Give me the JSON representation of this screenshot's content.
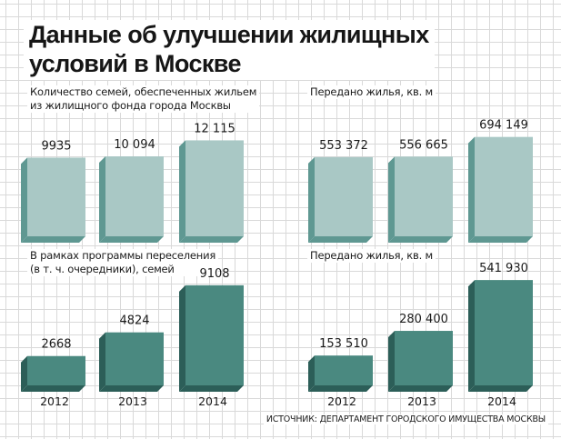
{
  "title": {
    "line1": "Данные об улучшении жилищных",
    "line2": "условий в Москве"
  },
  "colors": {
    "light_face": "#a9c8c5",
    "light_side": "#5f9892",
    "dark_face": "#4a8980",
    "dark_side": "#2c5e58"
  },
  "chart_data": [
    {
      "id": "families-housed",
      "type": "bar",
      "title_lines": [
        "Количество семей, обеспеченных жильем",
        "из жилищного фонда города Москвы"
      ],
      "categories": [
        "2012",
        "2013",
        "2014"
      ],
      "values": [
        9935,
        10094,
        12115
      ],
      "value_labels": [
        "9935",
        "10 094",
        "12 115"
      ],
      "ylim": [
        0,
        14000
      ],
      "color": "light"
    },
    {
      "id": "area-transferred-1",
      "type": "bar",
      "title_lines": [
        "Передано жилья, кв. м"
      ],
      "categories": [
        "2012",
        "2013",
        "2014"
      ],
      "values": [
        553372,
        556665,
        694149
      ],
      "value_labels": [
        "553 372",
        "556 665",
        "694 149"
      ],
      "ylim": [
        0,
        800000
      ],
      "color": "light"
    },
    {
      "id": "resettlement-families",
      "type": "bar",
      "title_lines": [
        "В рамках программы переселения",
        "(в т. ч. очередники), семей"
      ],
      "categories": [
        "2012",
        "2013",
        "2014"
      ],
      "values": [
        2668,
        4824,
        9108
      ],
      "value_labels": [
        "2668",
        "4824",
        "9108"
      ],
      "ylim": [
        0,
        11000
      ],
      "color": "dark"
    },
    {
      "id": "area-transferred-2",
      "type": "bar",
      "title_lines": [
        "Передано жилья, кв. м"
      ],
      "categories": [
        "2012",
        "2013",
        "2014"
      ],
      "values": [
        153510,
        280400,
        541930
      ],
      "value_labels": [
        "153 510",
        "280 400",
        "541 930"
      ],
      "ylim": [
        0,
        650000
      ],
      "color": "dark"
    }
  ],
  "year_labels": [
    "2012",
    "2013",
    "2014"
  ],
  "source": "ИСТОЧНИК: ДЕПАРТАМЕНТ ГОРОДСКОГО ИМУЩЕСТВА МОСКВЫ"
}
